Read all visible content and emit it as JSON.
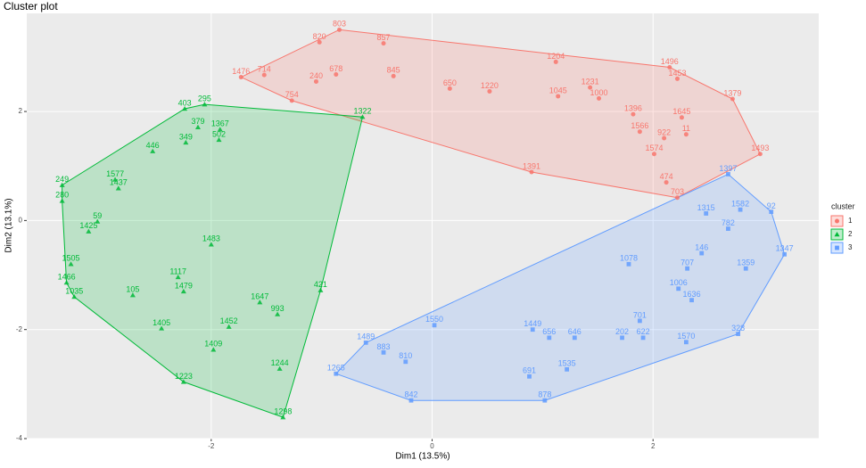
{
  "chart_data": {
    "type": "scatter",
    "title": "Cluster plot",
    "x_label": "Dim1 (13.5%)",
    "y_label": "Dim2 (13.1%)",
    "xlim": [
      -3.67,
      3.5
    ],
    "ylim": [
      -4,
      3.8
    ],
    "xticks": [
      -2,
      0,
      2
    ],
    "yticks": [
      -4,
      -2,
      0,
      2
    ],
    "grid": true,
    "hull": true,
    "legend_title": "cluster",
    "legend": "right",
    "series": [
      {
        "name": "1",
        "color": "#F8766D",
        "shape": "circle",
        "labels": [
          "803",
          "1476",
          "1379",
          "1493",
          "857",
          "1496",
          "1204",
          "845",
          "1000",
          "11",
          "922",
          "1645",
          "474",
          "703",
          "240",
          "678",
          "754",
          "714",
          "820",
          "1231",
          "1396",
          "1566",
          "1045",
          "1220",
          "650",
          "1453",
          "1574",
          "1391"
        ],
        "x": [
          -0.84,
          -1.73,
          2.72,
          2.97,
          -0.44,
          2.15,
          1.12,
          -0.35,
          1.51,
          2.3,
          2.1,
          2.26,
          2.12,
          2.22,
          -1.05,
          -0.87,
          -1.27,
          -1.52,
          -1.02,
          1.43,
          1.82,
          1.88,
          1.14,
          0.52,
          0.16,
          2.22,
          2.01,
          0.9
        ],
        "y": [
          3.5,
          2.63,
          2.23,
          1.22,
          3.25,
          2.81,
          2.91,
          2.65,
          2.24,
          1.58,
          1.51,
          1.89,
          0.7,
          0.42,
          2.55,
          2.68,
          2.2,
          2.67,
          3.27,
          2.44,
          1.95,
          1.63,
          2.28,
          2.37,
          2.42,
          2.6,
          1.22,
          0.89
        ]
      },
      {
        "name": "2",
        "color": "#00BA38",
        "shape": "triangle",
        "labels": [
          "295",
          "403",
          "249",
          "280",
          "1505",
          "1466",
          "1035",
          "1223",
          "1298",
          "1244",
          "379",
          "349",
          "446",
          "1367",
          "502",
          "59",
          "1425",
          "105",
          "1405",
          "1409",
          "1452",
          "1483",
          "1117",
          "1479",
          "1647",
          "993",
          "421",
          "1577",
          "1437",
          "1322"
        ],
        "x": [
          -2.06,
          -2.24,
          -3.35,
          -3.35,
          -3.27,
          -3.31,
          -3.24,
          -2.25,
          -1.35,
          -1.38,
          -2.12,
          -2.23,
          -2.53,
          -1.92,
          -1.93,
          -3.03,
          -3.11,
          -2.71,
          -2.45,
          -1.98,
          -1.84,
          -2.0,
          -2.3,
          -2.25,
          -1.56,
          -1.4,
          -1.01,
          -2.87,
          -2.84,
          -0.63
        ],
        "y": [
          2.13,
          2.05,
          0.65,
          0.36,
          -0.8,
          -1.14,
          -1.4,
          -2.96,
          -3.61,
          -2.72,
          1.71,
          1.43,
          1.27,
          1.67,
          1.48,
          -0.02,
          -0.2,
          -1.37,
          -1.98,
          -2.37,
          -1.95,
          -0.44,
          -1.04,
          -1.3,
          -1.5,
          -1.72,
          -1.28,
          0.75,
          0.59,
          1.9
        ]
      },
      {
        "name": "3",
        "color": "#619CFF",
        "shape": "square",
        "labels": [
          "1397",
          "92",
          "1347",
          "328",
          "1570",
          "878",
          "842",
          "1265",
          "1582",
          "1359",
          "782",
          "1315",
          "146",
          "707",
          "1006",
          "1636",
          "701",
          "622",
          "202",
          "646",
          "656",
          "1535",
          "691",
          "810",
          "883",
          "1489",
          "1550",
          "1078",
          "1449"
        ],
        "x": [
          2.68,
          3.07,
          3.19,
          2.77,
          2.3,
          1.02,
          -0.19,
          -0.87,
          2.79,
          2.84,
          2.68,
          2.48,
          2.44,
          2.31,
          2.23,
          2.35,
          1.88,
          1.91,
          1.72,
          1.29,
          1.06,
          1.22,
          0.88,
          -0.24,
          -0.44,
          -0.6,
          0.02,
          1.78,
          0.91
        ],
        "y": [
          0.85,
          0.16,
          -0.62,
          -2.08,
          -2.23,
          -3.3,
          -3.3,
          -2.81,
          0.2,
          -0.88,
          -0.15,
          0.13,
          -0.6,
          -0.88,
          -1.25,
          -1.46,
          -1.84,
          -2.15,
          -2.15,
          -2.15,
          -2.15,
          -2.73,
          -2.86,
          -2.59,
          -2.42,
          -2.24,
          -1.92,
          -0.8,
          -2.0
        ]
      }
    ]
  }
}
